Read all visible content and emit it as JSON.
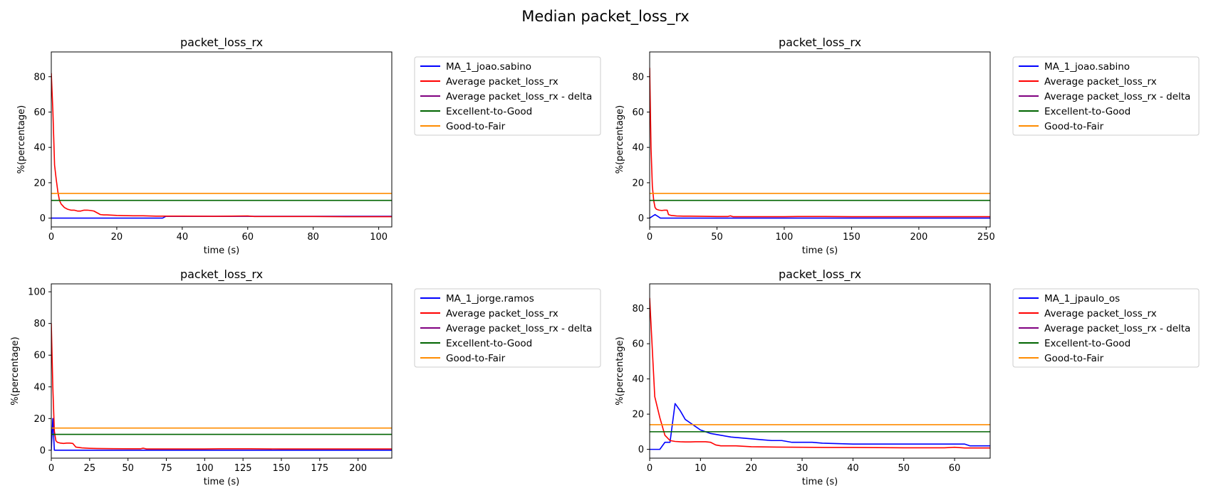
{
  "figure": {
    "title": "Median packet_loss_rx"
  },
  "chart_data": [
    {
      "type": "line",
      "title": "packet_loss_rx",
      "xlabel": "time (s)",
      "ylabel": "%(percentage)",
      "xlim": [
        0,
        104
      ],
      "ylim": [
        -5,
        94
      ],
      "xticks": [
        0,
        20,
        40,
        60,
        80,
        100
      ],
      "yticks": [
        0,
        20,
        40,
        60,
        80
      ],
      "grid": false,
      "legend_position": "outside-right",
      "legend": [
        "MA_1_joao.sabino",
        "Average packet_loss_rx",
        "Average packet_loss_rx - delta",
        "Excellent-to-Good",
        "Good-to-Fair"
      ],
      "series": [
        {
          "name": "MA_1_joao.sabino",
          "color": "#0000ff",
          "x": [
            0,
            10,
            20,
            30,
            34,
            35,
            40,
            60,
            80,
            104
          ],
          "y": [
            0,
            0,
            0,
            0,
            0,
            1,
            1,
            1,
            1,
            1
          ]
        },
        {
          "name": "Average packet_loss_rx",
          "color": "#ff0000",
          "x": [
            0,
            0.5,
            1,
            1.5,
            2,
            2.5,
            3,
            4,
            5,
            6,
            7,
            8,
            9,
            10,
            11,
            12,
            13,
            14,
            15,
            16,
            17,
            18,
            20,
            22,
            25,
            28,
            30,
            32,
            35,
            40,
            50,
            60,
            62,
            70,
            80,
            90,
            104
          ],
          "y": [
            82,
            60,
            30,
            22,
            15,
            10,
            8,
            6,
            5,
            4.5,
            4.5,
            4,
            4,
            4.5,
            4.5,
            4.3,
            4,
            3,
            2,
            1.8,
            1.8,
            1.7,
            1.5,
            1.4,
            1.3,
            1.3,
            1.2,
            1.1,
            1.1,
            1.1,
            1.0,
            1.2,
            0.9,
            0.9,
            0.9,
            0.8,
            0.8
          ]
        },
        {
          "name": "Average packet_loss_rx - delta",
          "color": "#800080",
          "x": [],
          "y": []
        },
        {
          "name": "Excellent-to-Good",
          "color": "#006400",
          "x": [
            0,
            104
          ],
          "y": [
            10,
            10
          ]
        },
        {
          "name": "Good-to-Fair",
          "color": "#ff8c00",
          "x": [
            0,
            104
          ],
          "y": [
            14,
            14
          ]
        }
      ]
    },
    {
      "type": "line",
      "title": "packet_loss_rx",
      "xlabel": "time (s)",
      "ylabel": "%(percentage)",
      "xlim": [
        0,
        253
      ],
      "ylim": [
        -5,
        94
      ],
      "xticks": [
        0,
        50,
        100,
        150,
        200,
        250
      ],
      "yticks": [
        0,
        20,
        40,
        60,
        80
      ],
      "grid": false,
      "legend_position": "outside-right",
      "legend": [
        "MA_1_joao.sabino",
        "Average packet_loss_rx",
        "Average packet_loss_rx - delta",
        "Excellent-to-Good",
        "Good-to-Fair"
      ],
      "series": [
        {
          "name": "MA_1_joao.sabino",
          "color": "#0000ff",
          "x": [
            0,
            2,
            4,
            6,
            8,
            10,
            20,
            50,
            100,
            150,
            200,
            253
          ],
          "y": [
            0,
            1,
            2,
            1,
            0,
            0,
            0,
            0,
            0,
            0,
            0,
            0
          ]
        },
        {
          "name": "Average packet_loss_rx",
          "color": "#ff0000",
          "x": [
            0,
            1,
            2,
            3,
            4,
            5,
            7,
            9,
            11,
            13,
            14,
            16,
            20,
            25,
            30,
            40,
            50,
            58,
            60,
            62,
            70,
            80,
            100,
            110,
            130,
            150,
            200,
            253
          ],
          "y": [
            85,
            40,
            18,
            10,
            6,
            5,
            4.5,
            4.3,
            4.5,
            4.5,
            2,
            1.5,
            1.2,
            1.1,
            1.1,
            1.0,
            0.9,
            0.9,
            1.3,
            0.8,
            0.8,
            0.8,
            0.8,
            0.9,
            0.9,
            0.8,
            0.8,
            0.8
          ]
        },
        {
          "name": "Average packet_loss_rx - delta",
          "color": "#800080",
          "x": [],
          "y": []
        },
        {
          "name": "Excellent-to-Good",
          "color": "#006400",
          "x": [
            0,
            253
          ],
          "y": [
            10,
            10
          ]
        },
        {
          "name": "Good-to-Fair",
          "color": "#ff8c00",
          "x": [
            0,
            253
          ],
          "y": [
            14,
            14
          ]
        }
      ]
    },
    {
      "type": "line",
      "title": "packet_loss_rx",
      "xlabel": "time (s)",
      "ylabel": "%(percentage)",
      "xlim": [
        0,
        222
      ],
      "ylim": [
        -5,
        105
      ],
      "xticks": [
        0,
        25,
        50,
        75,
        100,
        125,
        150,
        175,
        200
      ],
      "yticks": [
        0,
        20,
        40,
        60,
        80,
        100
      ],
      "grid": false,
      "legend_position": "outside-right",
      "legend": [
        "MA_1_jorge.ramos",
        "Average packet_loss_rx",
        "Average packet_loss_rx - delta",
        "Excellent-to-Good",
        "Good-to-Fair"
      ],
      "series": [
        {
          "name": "MA_1_jorge.ramos",
          "color": "#0000ff",
          "x": [
            0,
            1,
            2,
            5,
            50,
            100,
            150,
            222
          ],
          "y": [
            0,
            20,
            0,
            0,
            0,
            0,
            0,
            0
          ]
        },
        {
          "name": "Average packet_loss_rx",
          "color": "#ff0000",
          "x": [
            0,
            1,
            2,
            3,
            4,
            6,
            8,
            10,
            12,
            14,
            16,
            20,
            25,
            30,
            40,
            50,
            58,
            60,
            62,
            70,
            80,
            100,
            110,
            130,
            150,
            222
          ],
          "y": [
            80,
            40,
            12,
            6,
            5,
            4.5,
            4.3,
            4.5,
            4.5,
            4.3,
            2,
            1.5,
            1.2,
            1.1,
            1.0,
            0.9,
            0.9,
            1.3,
            0.8,
            0.8,
            0.8,
            0.8,
            0.9,
            0.9,
            0.8,
            0.8
          ]
        },
        {
          "name": "Average packet_loss_rx - delta",
          "color": "#800080",
          "x": [],
          "y": []
        },
        {
          "name": "Excellent-to-Good",
          "color": "#006400",
          "x": [
            0,
            222
          ],
          "y": [
            10,
            10
          ]
        },
        {
          "name": "Good-to-Fair",
          "color": "#ff8c00",
          "x": [
            0,
            222
          ],
          "y": [
            14,
            14
          ]
        }
      ]
    },
    {
      "type": "line",
      "title": "packet_loss_rx",
      "xlabel": "time (s)",
      "ylabel": "%(percentage)",
      "xlim": [
        0,
        67
      ],
      "ylim": [
        -5,
        94
      ],
      "xticks": [
        0,
        10,
        20,
        30,
        40,
        50,
        60
      ],
      "yticks": [
        0,
        20,
        40,
        60,
        80
      ],
      "grid": false,
      "legend_position": "outside-right",
      "legend": [
        "MA_1_jpaulo_os",
        "Average packet_loss_rx",
        "Average packet_loss_rx - delta",
        "Excellent-to-Good",
        "Good-to-Fair"
      ],
      "series": [
        {
          "name": "MA_1_jpaulo_os",
          "color": "#0000ff",
          "x": [
            0,
            1,
            2,
            3,
            4,
            5,
            6,
            7,
            8,
            9,
            10,
            11,
            12,
            14,
            16,
            18,
            20,
            22,
            24,
            26,
            28,
            30,
            32,
            34,
            40,
            50,
            60,
            62,
            63,
            67
          ],
          "y": [
            0,
            0,
            0,
            4,
            4,
            26,
            22,
            17,
            15,
            13,
            11,
            10,
            9,
            8,
            7,
            6.5,
            6,
            5.5,
            5,
            5,
            4,
            4,
            4,
            3.5,
            3,
            3,
            3,
            3,
            2,
            2
          ]
        },
        {
          "name": "Average packet_loss_rx",
          "color": "#ff0000",
          "x": [
            0,
            1,
            2,
            3,
            4,
            5,
            6,
            7,
            8,
            9,
            10,
            11,
            12,
            13,
            14,
            15,
            17,
            20,
            25,
            30,
            35,
            40,
            45,
            50,
            55,
            58,
            60,
            62,
            67
          ],
          "y": [
            86,
            30,
            18,
            8,
            5,
            4.5,
            4.3,
            4.2,
            4.2,
            4.3,
            4.3,
            4.3,
            4,
            2.5,
            2,
            2,
            2,
            1.5,
            1.3,
            1.2,
            1.1,
            1.1,
            1.0,
            0.9,
            0.9,
            0.9,
            1.2,
            0.8,
            0.8
          ]
        },
        {
          "name": "Average packet_loss_rx - delta",
          "color": "#800080",
          "x": [],
          "y": []
        },
        {
          "name": "Excellent-to-Good",
          "color": "#006400",
          "x": [
            0,
            67
          ],
          "y": [
            10,
            10
          ]
        },
        {
          "name": "Good-to-Fair",
          "color": "#ff8c00",
          "x": [
            0,
            67
          ],
          "y": [
            14,
            14
          ]
        }
      ]
    }
  ]
}
